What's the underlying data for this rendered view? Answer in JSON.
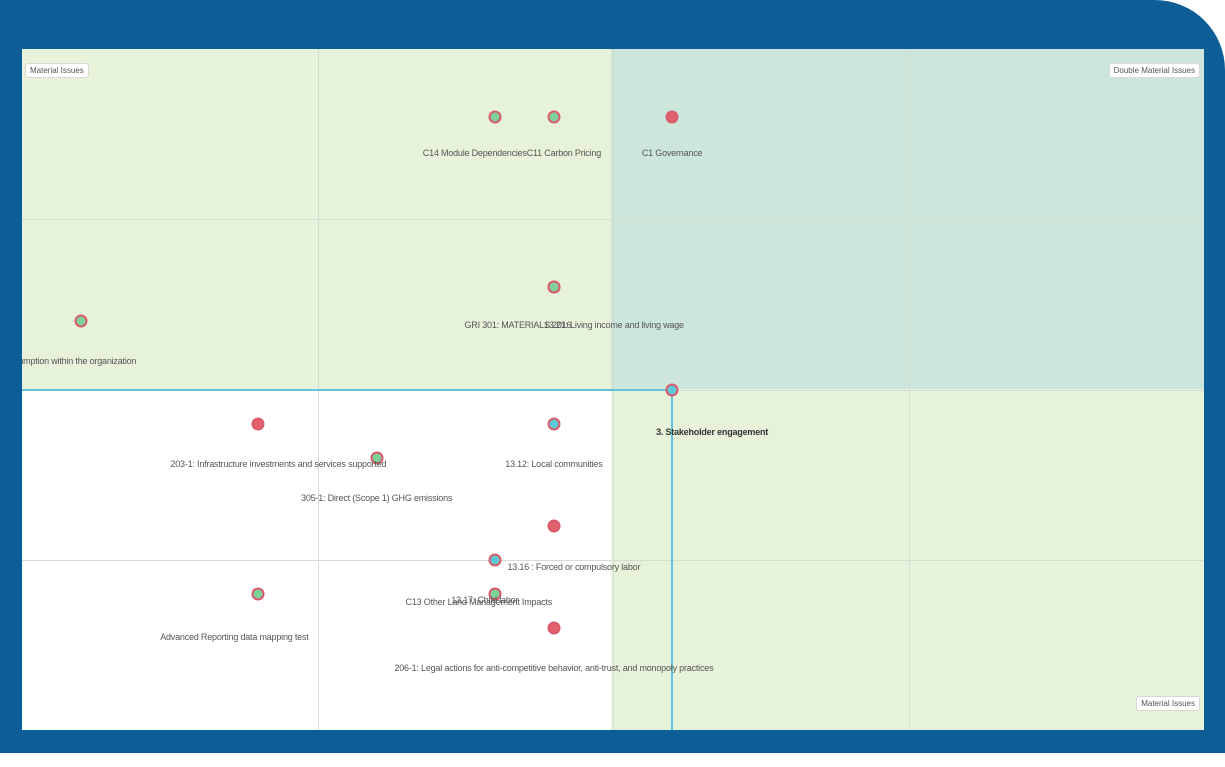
{
  "chart_data": {
    "type": "scatter",
    "title": "",
    "xlabel": "",
    "ylabel": "",
    "xlim": [
      0,
      4
    ],
    "ylim": [
      0,
      4
    ],
    "grid": true,
    "threshold_x": 2.2,
    "threshold_y": 2.0,
    "quadrant_labels": {
      "top_left": "Material Issues",
      "top_right": "Double Material Issues",
      "bottom_right": "Material Issues"
    },
    "colors": {
      "frame": "#0d5e97",
      "quadrant_financial": "#e6f2d9",
      "quadrant_double": "#cde6db",
      "threshold": "#5fc4dc",
      "green": "#7fd19a",
      "teal": "#5cc8d6",
      "red": "#e0606e",
      "darkred": "#c25461",
      "outline": "#d95b6b"
    },
    "points": [
      {
        "label": "C14 Module Dependencies",
        "x": 1.6,
        "y": 3.6,
        "color": "green"
      },
      {
        "label": "C11 Carbon Pricing",
        "x": 1.8,
        "y": 3.6,
        "color": "green"
      },
      {
        "label": "C1 Governance",
        "x": 2.2,
        "y": 3.6,
        "color": "red"
      },
      {
        "label": "GRI 301: MATERIALS 2016",
        "x": 1.8,
        "y": 2.6,
        "color": "darkred"
      },
      {
        "label": "13.21: Living income and living wage",
        "x": 1.8,
        "y": 2.6,
        "color": "green"
      },
      {
        "label": "rgy consumption within the organization",
        "x": 0.2,
        "y": 2.4,
        "color": "green"
      },
      {
        "label": "3. Stakeholder engagement",
        "x": 2.2,
        "y": 2.0,
        "color": "teal",
        "bold": true
      },
      {
        "label": "203-1: Infrastructure investments and services supported",
        "x": 0.8,
        "y": 1.8,
        "color": "red"
      },
      {
        "label": "13.12: Local communities",
        "x": 1.8,
        "y": 1.8,
        "color": "teal"
      },
      {
        "label": "305-1: Direct (Scope 1) GHG emissions",
        "x": 1.2,
        "y": 1.6,
        "color": "green"
      },
      {
        "label": "13.16 : Forced or compulsory labor",
        "x": 1.8,
        "y": 1.2,
        "color": "red"
      },
      {
        "label": "13.17: Child labor",
        "x": 1.6,
        "y": 1.0,
        "color": "teal"
      },
      {
        "label": "Advanced Reporting data mapping test",
        "x": 0.8,
        "y": 0.8,
        "color": "green"
      },
      {
        "label": "C13 Other Land Management Impacts",
        "x": 1.6,
        "y": 0.8,
        "color": "green"
      },
      {
        "label": "206-1: Legal actions for anti-competitive behavior, anti-trust, and monopoly practices",
        "x": 1.8,
        "y": 0.6,
        "color": "red"
      }
    ]
  }
}
